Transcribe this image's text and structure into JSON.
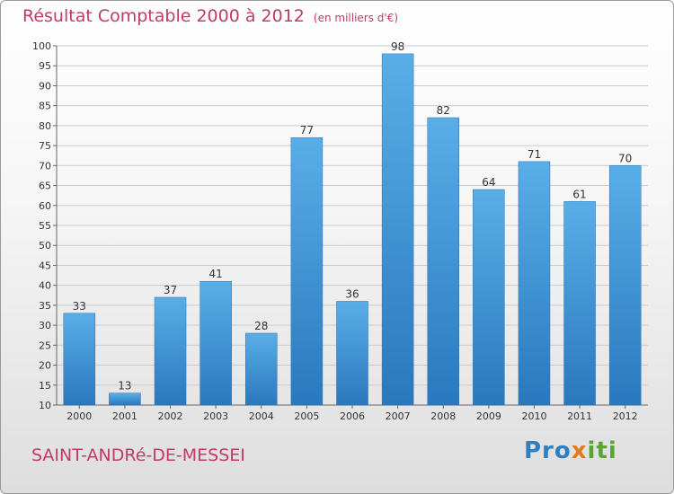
{
  "chart_data": {
    "type": "bar",
    "title": "Résultat Comptable 2000 à 2012",
    "unit_note": "(en milliers d'€)",
    "categories": [
      "2000",
      "2001",
      "2002",
      "2003",
      "2004",
      "2005",
      "2006",
      "2007",
      "2008",
      "2009",
      "2010",
      "2011",
      "2012"
    ],
    "values": [
      33,
      13,
      37,
      41,
      28,
      77,
      36,
      98,
      82,
      64,
      71,
      61,
      70
    ],
    "ylim": [
      10,
      100
    ],
    "yticks": [
      10,
      15,
      20,
      25,
      30,
      35,
      40,
      45,
      50,
      55,
      60,
      65,
      70,
      75,
      80,
      85,
      90,
      95,
      100
    ],
    "xlabel": "",
    "ylabel": "",
    "grid": true,
    "bar_color": "#3f8fd2",
    "gridline_color": "#cccccc"
  },
  "footer": {
    "place_name": "SAINT-ANDRé-DE-MESSEI",
    "brand_part1": "Pro",
    "brand_part2": "x",
    "brand_part3": "iti"
  }
}
